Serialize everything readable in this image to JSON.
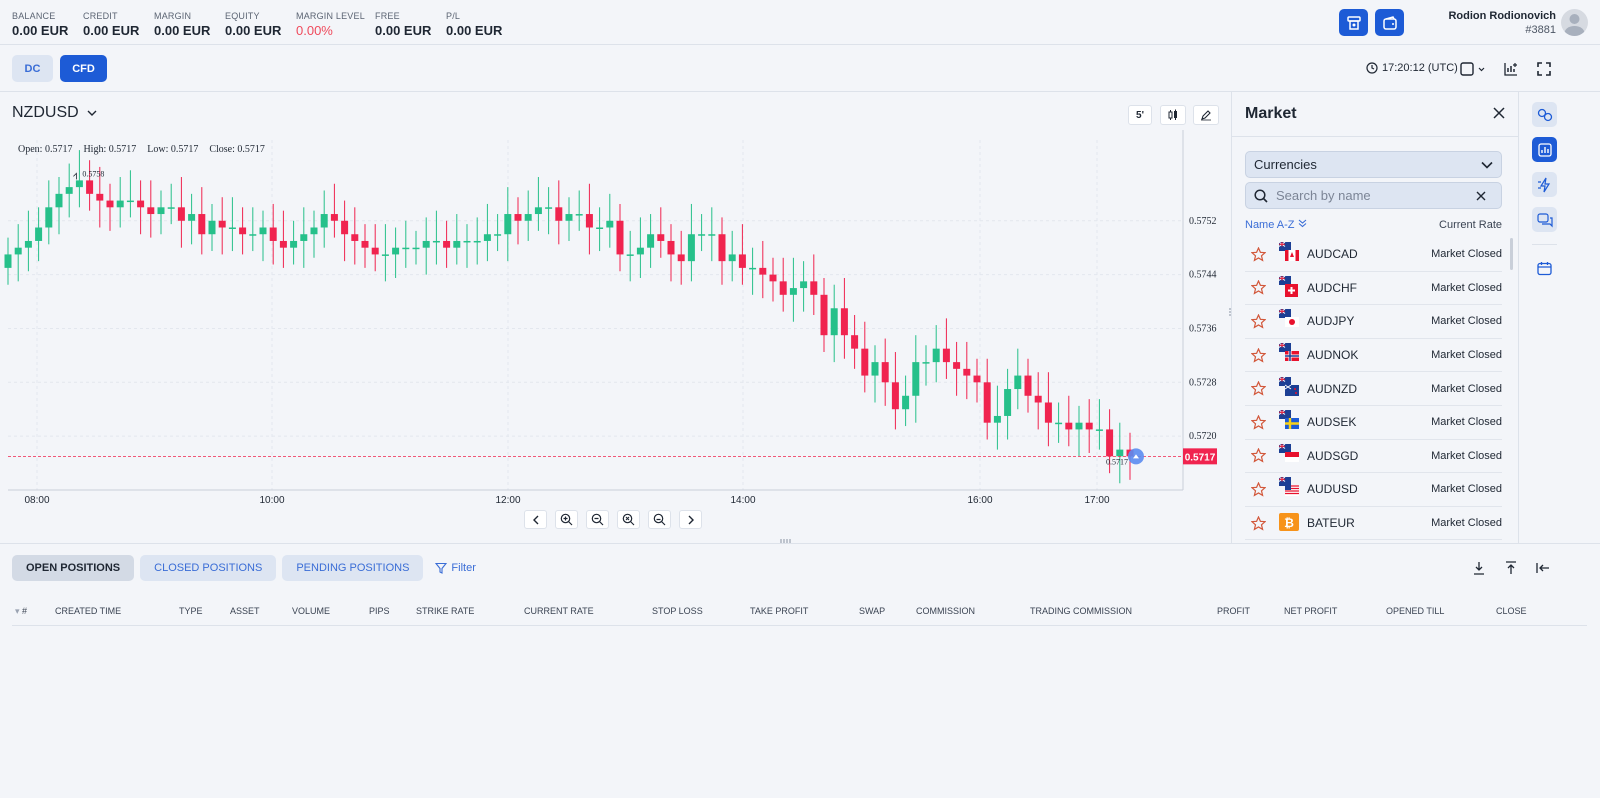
{
  "account": {
    "stats": [
      {
        "label": "BALANCE",
        "value": "0.00 EUR"
      },
      {
        "label": "CREDIT",
        "value": "0.00 EUR"
      },
      {
        "label": "MARGIN",
        "value": "0.00 EUR"
      },
      {
        "label": "EQUITY",
        "value": "0.00 EUR"
      },
      {
        "label": "MARGIN LEVEL",
        "value": "0.00%"
      },
      {
        "label": "FREE",
        "value": "0.00 EUR"
      },
      {
        "label": "P/L",
        "value": "0.00 EUR"
      }
    ],
    "user_name": "Rodion Rodionovich",
    "user_id": "#3881",
    "margin_level_color": "#ef4a5c"
  },
  "modes": {
    "dc": "DC",
    "cfd": "CFD",
    "active": "CFD"
  },
  "clock": "17:20:12 (UTC)",
  "chart": {
    "symbol": "NZDUSD",
    "timeframe": "5'",
    "ohlc": {
      "open": "Open: 0.5717",
      "high": "High: 0.5717",
      "low": "Low: 0.5717",
      "close": "Close: 0.5717"
    },
    "high_marker": "0.5758",
    "last_marker": "0.5717",
    "current_price": "0.5717",
    "y_ticks": [
      "0.5752",
      "0.5744",
      "0.5736",
      "0.5728",
      "0.5720"
    ],
    "x_ticks": [
      "08:00",
      "10:00",
      "12:00",
      "14:00",
      "16:00",
      "17:00"
    ],
    "up_color": "#26c08a",
    "down_color": "#f0244f"
  },
  "chart_data": {
    "type": "candlestick",
    "title": "NZDUSD",
    "x_range": [
      "07:50",
      "17:20"
    ],
    "ylim": [
      0.5712,
      0.5764
    ],
    "y_ticks": [
      0.5752,
      0.5744,
      0.5736,
      0.5728,
      0.572
    ],
    "x_ticks": [
      "08:00",
      "10:00",
      "12:00",
      "14:00",
      "16:00",
      "17:00"
    ],
    "last_price": 0.5717,
    "close_series": [
      0.5747,
      0.5748,
      0.5749,
      0.5751,
      0.5754,
      0.5756,
      0.5757,
      0.5758,
      0.5756,
      0.5755,
      0.5754,
      0.5755,
      0.5755,
      0.5754,
      0.5753,
      0.5754,
      0.5754,
      0.5752,
      0.5753,
      0.575,
      0.5752,
      0.5751,
      0.5751,
      0.575,
      0.575,
      0.5751,
      0.5749,
      0.5748,
      0.5749,
      0.575,
      0.5751,
      0.5753,
      0.5752,
      0.575,
      0.5749,
      0.5748,
      0.5747,
      0.5747,
      0.5748,
      0.5748,
      0.5748,
      0.5749,
      0.5749,
      0.5748,
      0.5749,
      0.5749,
      0.5749,
      0.575,
      0.575,
      0.5753,
      0.5752,
      0.5753,
      0.5754,
      0.5754,
      0.5752,
      0.5753,
      0.5753,
      0.5751,
      0.5751,
      0.5752,
      0.5747,
      0.5747,
      0.5748,
      0.575,
      0.5749,
      0.5747,
      0.5746,
      0.575,
      0.575,
      0.575,
      0.5746,
      0.5747,
      0.5745,
      0.5745,
      0.5744,
      0.5743,
      0.5741,
      0.5742,
      0.5743,
      0.5741,
      0.5735,
      0.5739,
      0.5735,
      0.5733,
      0.5729,
      0.5731,
      0.5728,
      0.5724,
      0.5726,
      0.5731,
      0.5731,
      0.5733,
      0.5731,
      0.573,
      0.5729,
      0.5728,
      0.5722,
      0.5723,
      0.5727,
      0.5729,
      0.5726,
      0.5725,
      0.5722,
      0.5722,
      0.5721,
      0.5722,
      0.5721,
      0.5721,
      0.5717,
      0.5718,
      0.5717
    ]
  },
  "zoom_controls": [
    "prev",
    "zoom-in",
    "zoom-out",
    "zoom-reset",
    "zoom-fit",
    "next"
  ],
  "market": {
    "title": "Market",
    "category": "Currencies",
    "search_placeholder": "Search by name",
    "sort_label": "Name A-Z",
    "rate_header": "Current Rate",
    "items": [
      {
        "symbol": "AUDCAD",
        "rate": "Market Closed",
        "flag": "CA"
      },
      {
        "symbol": "AUDCHF",
        "rate": "Market Closed",
        "flag": "CH"
      },
      {
        "symbol": "AUDJPY",
        "rate": "Market Closed",
        "flag": "JP"
      },
      {
        "symbol": "AUDNOK",
        "rate": "Market Closed",
        "flag": "NO"
      },
      {
        "symbol": "AUDNZD",
        "rate": "Market Closed",
        "flag": "NZ"
      },
      {
        "symbol": "AUDSEK",
        "rate": "Market Closed",
        "flag": "SE"
      },
      {
        "symbol": "AUDSGD",
        "rate": "Market Closed",
        "flag": "SG"
      },
      {
        "symbol": "AUDUSD",
        "rate": "Market Closed",
        "flag": "US"
      },
      {
        "symbol": "BATEUR",
        "rate": "Market Closed",
        "flag": "BAT"
      }
    ]
  },
  "positions": {
    "tabs": [
      "OPEN POSITIONS",
      "CLOSED POSITIONS",
      "PENDING POSITIONS"
    ],
    "active_tab": "OPEN POSITIONS",
    "filter_label": "Filter",
    "columns": [
      "#",
      "CREATED TIME",
      "TYPE",
      "ASSET",
      "VOLUME",
      "PIPS",
      "STRIKE RATE",
      "CURRENT RATE",
      "STOP LOSS",
      "TAKE PROFIT",
      "SWAP",
      "COMMISSION",
      "TRADING COMMISSION",
      "PROFIT",
      "NET PROFIT",
      "OPENED TILL",
      "CLOSE"
    ]
  }
}
